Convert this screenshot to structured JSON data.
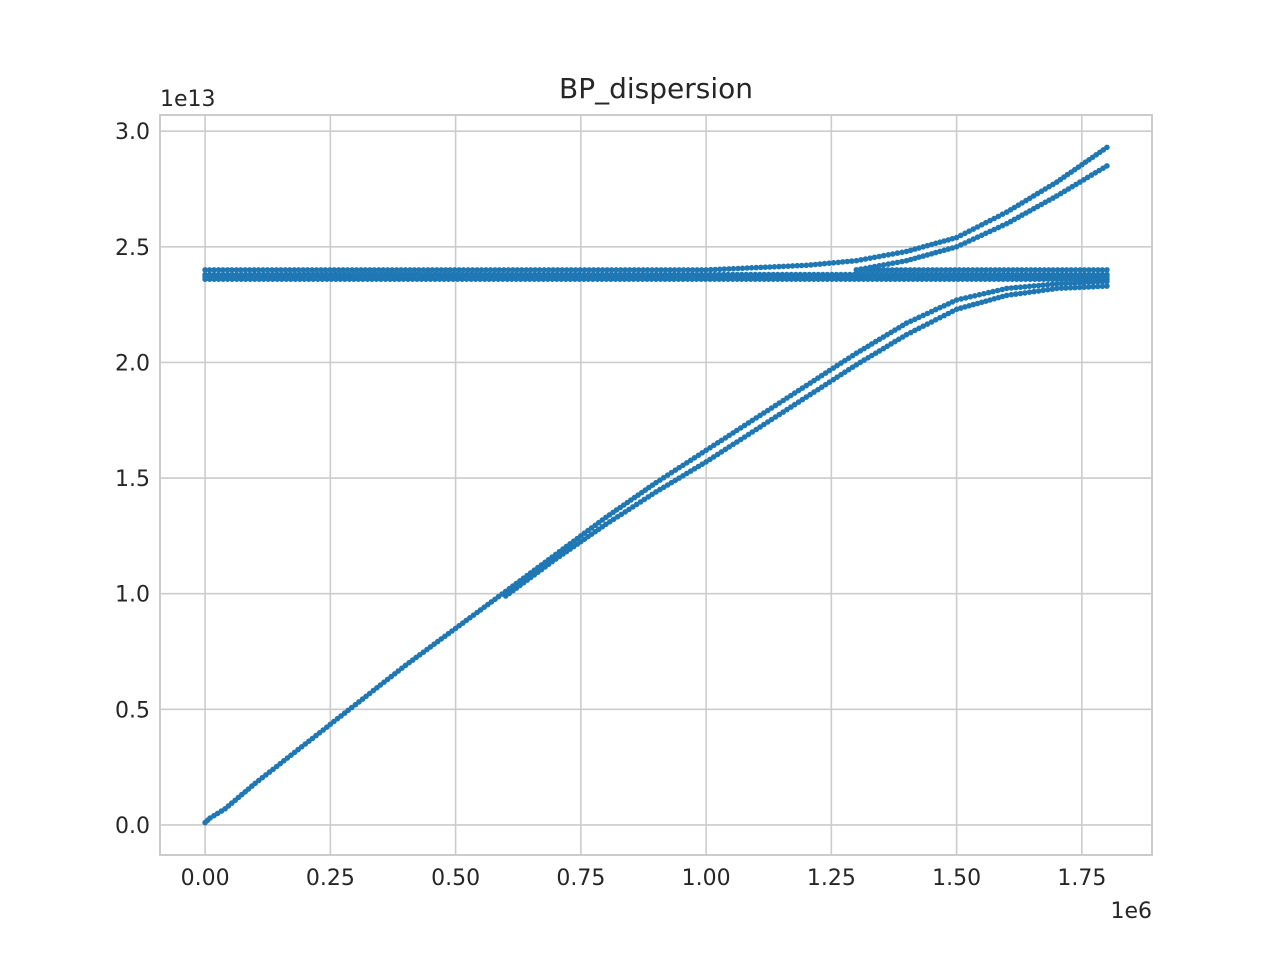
{
  "chart_data": {
    "type": "scatter",
    "title": "BP_dispersion",
    "xlabel": "",
    "ylabel": "",
    "x_offset_text": "1e6",
    "y_offset_text": "1e13",
    "xlim": [
      -90000,
      1890000
    ],
    "ylim": [
      -1300000000000.0,
      30700000000000.0
    ],
    "x_ticks": [
      0,
      250000,
      500000,
      750000,
      1000000,
      1250000,
      1500000,
      1750000
    ],
    "x_tick_labels": [
      "0.00",
      "0.25",
      "0.50",
      "0.75",
      "1.00",
      "1.25",
      "1.50",
      "1.75"
    ],
    "y_ticks": [
      0,
      5000000000000.0,
      10000000000000.0,
      15000000000000.0,
      20000000000000.0,
      25000000000000.0,
      30000000000000.0
    ],
    "y_tick_labels": [
      "0.0",
      "0.5",
      "1.0",
      "1.5",
      "2.0",
      "2.5",
      "3.0"
    ],
    "grid": true,
    "marker_color": "#1f77b4",
    "series": [
      {
        "points": [
          [
            0,
            100000000000.0
          ],
          [
            10000,
            300000000000.0
          ],
          [
            40000,
            700000000000.0
          ],
          [
            100000,
            1800000000000.0
          ],
          [
            200000,
            3500000000000.0
          ],
          [
            300000,
            5200000000000.0
          ],
          [
            400000,
            6900000000000.0
          ],
          [
            500000,
            8500000000000.0
          ],
          [
            600000,
            10100000000000.0
          ],
          [
            700000,
            11700000000000.0
          ],
          [
            800000,
            13300000000000.0
          ],
          [
            900000,
            14800000000000.0
          ],
          [
            1000000,
            16200000000000.0
          ],
          [
            1100000,
            17600000000000.0
          ],
          [
            1200000,
            19000000000000.0
          ],
          [
            1300000,
            20400000000000.0
          ],
          [
            1400000,
            21700000000000.0
          ],
          [
            1500000,
            22700000000000.0
          ],
          [
            1600000,
            23200000000000.0
          ],
          [
            1700000,
            23400000000000.0
          ],
          [
            1800000,
            23500000000000.0
          ]
        ]
      },
      {
        "points": [
          [
            600000,
            9900000000000.0
          ],
          [
            700000,
            11500000000000.0
          ],
          [
            800000,
            13000000000000.0
          ],
          [
            900000,
            14400000000000.0
          ],
          [
            1000000,
            15700000000000.0
          ],
          [
            1100000,
            17100000000000.0
          ],
          [
            1200000,
            18500000000000.0
          ],
          [
            1300000,
            19900000000000.0
          ],
          [
            1400000,
            21200000000000.0
          ],
          [
            1500000,
            22300000000000.0
          ],
          [
            1600000,
            22900000000000.0
          ],
          [
            1700000,
            23200000000000.0
          ],
          [
            1800000,
            23300000000000.0
          ]
        ]
      },
      {
        "points": [
          [
            0,
            24000000000000.0
          ],
          [
            400000,
            24000000000000.0
          ],
          [
            650000,
            24000000000000.0
          ],
          [
            1000000,
            24000000000000.0
          ],
          [
            1200000,
            24200000000000.0
          ],
          [
            1300000,
            24400000000000.0
          ],
          [
            1400000,
            24800000000000.0
          ],
          [
            1500000,
            25400000000000.0
          ],
          [
            1600000,
            26500000000000.0
          ],
          [
            1700000,
            27800000000000.0
          ],
          [
            1800000,
            29300000000000.0
          ]
        ]
      },
      {
        "points": [
          [
            1300000,
            24000000000000.0
          ],
          [
            1400000,
            24400000000000.0
          ],
          [
            1500000,
            25000000000000.0
          ],
          [
            1600000,
            26000000000000.0
          ],
          [
            1700000,
            27200000000000.0
          ],
          [
            1800000,
            28500000000000.0
          ]
        ]
      },
      {
        "points": [
          [
            0,
            23800000000000.0
          ],
          [
            1800000,
            23800000000000.0
          ]
        ]
      },
      {
        "points": [
          [
            0,
            23700000000000.0
          ],
          [
            1800000,
            23700000000000.0
          ]
        ]
      },
      {
        "points": [
          [
            0,
            23600000000000.0
          ],
          [
            1800000,
            23600000000000.0
          ]
        ]
      },
      {
        "points": [
          [
            1300000,
            24000000000000.0
          ],
          [
            1800000,
            24000000000000.0
          ]
        ]
      }
    ]
  }
}
